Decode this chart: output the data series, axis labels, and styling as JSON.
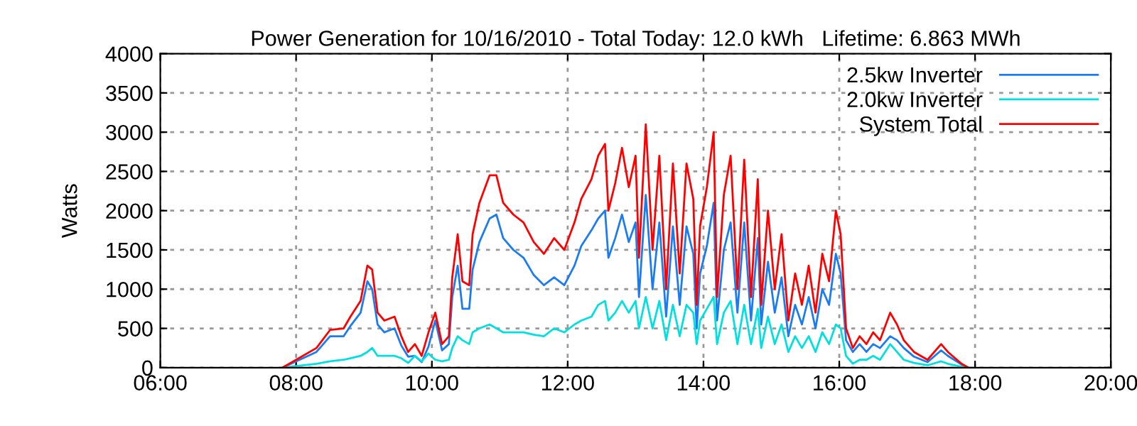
{
  "chart_data": {
    "type": "line",
    "title": "Power Generation for 10/16/2010 - Total Today: 12.0 kWh   Lifetime: 6.863 MWh",
    "ylabel": "Watts",
    "x": [
      7.8,
      8.0,
      8.3,
      8.5,
      8.7,
      8.8,
      8.95,
      9.05,
      9.12,
      9.2,
      9.3,
      9.45,
      9.55,
      9.65,
      9.75,
      9.85,
      9.95,
      10.05,
      10.15,
      10.25,
      10.3,
      10.38,
      10.45,
      10.55,
      10.6,
      10.7,
      10.85,
      10.95,
      11.05,
      11.2,
      11.35,
      11.5,
      11.65,
      11.8,
      11.95,
      12.1,
      12.2,
      12.35,
      12.45,
      12.55,
      12.6,
      12.7,
      12.8,
      12.9,
      13.0,
      13.05,
      13.15,
      13.25,
      13.35,
      13.45,
      13.55,
      13.65,
      13.75,
      13.85,
      13.9,
      13.95,
      14.05,
      14.15,
      14.2,
      14.3,
      14.4,
      14.5,
      14.6,
      14.7,
      14.8,
      14.85,
      14.95,
      15.05,
      15.15,
      15.25,
      15.35,
      15.45,
      15.55,
      15.65,
      15.75,
      15.85,
      15.95,
      16.02,
      16.1,
      16.2,
      16.3,
      16.4,
      16.5,
      16.6,
      16.75,
      16.85,
      16.95,
      17.1,
      17.3,
      17.5,
      17.6,
      17.8,
      17.9
    ],
    "series": [
      {
        "name": "2.5kw Inverter",
        "color": "#1a7cf0",
        "values": [
          0,
          80,
          200,
          400,
          400,
          530,
          700,
          1100,
          1000,
          550,
          450,
          500,
          280,
          140,
          150,
          70,
          270,
          600,
          220,
          300,
          900,
          1300,
          750,
          750,
          1250,
          1600,
          1900,
          1950,
          1650,
          1500,
          1400,
          1180,
          1050,
          1150,
          1050,
          1300,
          1550,
          1750,
          1900,
          2000,
          1400,
          1650,
          1950,
          1600,
          1850,
          900,
          2200,
          1000,
          1850,
          650,
          1800,
          800,
          1800,
          1450,
          500,
          1200,
          1550,
          2100,
          600,
          1500,
          1850,
          700,
          1850,
          600,
          1650,
          550,
          1350,
          700,
          1150,
          400,
          800,
          550,
          900,
          500,
          1000,
          800,
          1450,
          1200,
          350,
          200,
          300,
          200,
          300,
          250,
          400,
          350,
          250,
          140,
          70,
          220,
          150,
          40,
          0
        ]
      },
      {
        "name": "2.0kw Inverter",
        "color": "#00e0e0",
        "values": [
          0,
          20,
          50,
          80,
          100,
          120,
          150,
          200,
          250,
          150,
          150,
          150,
          120,
          60,
          150,
          80,
          180,
          100,
          80,
          100,
          250,
          400,
          350,
          300,
          450,
          500,
          550,
          500,
          450,
          450,
          450,
          420,
          400,
          500,
          450,
          550,
          600,
          650,
          800,
          850,
          600,
          700,
          850,
          700,
          850,
          500,
          900,
          500,
          850,
          350,
          800,
          400,
          800,
          700,
          300,
          600,
          750,
          900,
          300,
          700,
          850,
          300,
          800,
          300,
          750,
          250,
          650,
          300,
          550,
          200,
          400,
          250,
          400,
          200,
          450,
          300,
          550,
          500,
          150,
          50,
          100,
          100,
          150,
          100,
          300,
          200,
          100,
          60,
          30,
          80,
          50,
          10,
          0
        ]
      },
      {
        "name": "System Total",
        "color": "#ff0000",
        "values": [
          0,
          100,
          250,
          480,
          500,
          650,
          850,
          1300,
          1250,
          700,
          600,
          650,
          400,
          200,
          300,
          150,
          450,
          700,
          300,
          400,
          1150,
          1700,
          1100,
          1050,
          1700,
          2100,
          2450,
          2450,
          2100,
          1950,
          1850,
          1600,
          1450,
          1650,
          1500,
          1850,
          2150,
          2400,
          2700,
          2850,
          2000,
          2350,
          2800,
          2300,
          2700,
          1400,
          3100,
          1500,
          2700,
          1000,
          2600,
          1200,
          2600,
          2150,
          800,
          1800,
          2300,
          3000,
          900,
          2200,
          2700,
          1000,
          2650,
          900,
          2400,
          800,
          2000,
          1000,
          1700,
          600,
          1200,
          800,
          1300,
          700,
          1450,
          1100,
          2000,
          1700,
          500,
          250,
          400,
          300,
          450,
          350,
          700,
          550,
          350,
          200,
          100,
          300,
          200,
          50,
          0
        ]
      }
    ],
    "xlim": [
      6,
      20
    ],
    "xticks": [
      {
        "value": 6,
        "label": "06:00"
      },
      {
        "value": 8,
        "label": "08:00"
      },
      {
        "value": 10,
        "label": "10:00"
      },
      {
        "value": 12,
        "label": "12:00"
      },
      {
        "value": 14,
        "label": "14:00"
      },
      {
        "value": 16,
        "label": "16:00"
      },
      {
        "value": 18,
        "label": "18:00"
      },
      {
        "value": 20,
        "label": "20:00"
      }
    ],
    "ylim": [
      0,
      4000
    ],
    "yticks": [
      0,
      500,
      1000,
      1500,
      2000,
      2500,
      3000,
      3500,
      4000
    ],
    "grid": true,
    "legend": "top right",
    "line_style": "solid",
    "marker": "none"
  }
}
